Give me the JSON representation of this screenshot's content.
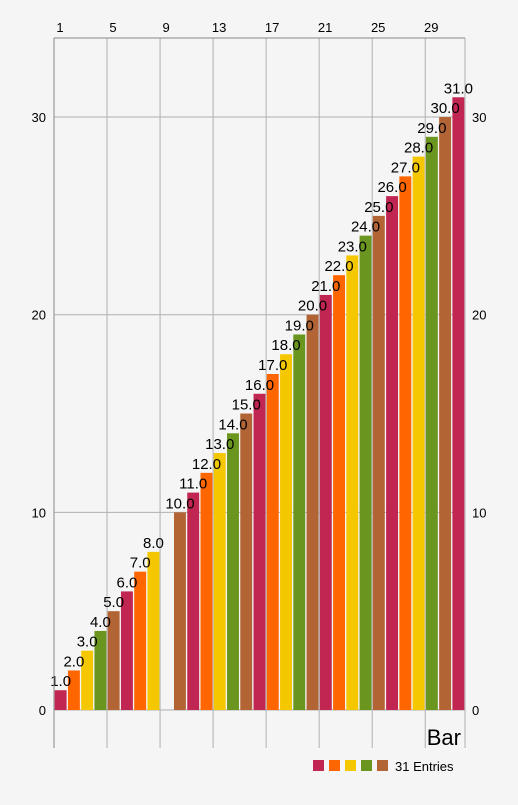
{
  "chart_data": {
    "type": "bar",
    "x": [
      1,
      2,
      3,
      4,
      5,
      6,
      7,
      8,
      9,
      10,
      11,
      12,
      13,
      14,
      15,
      16,
      17,
      18,
      19,
      20,
      21,
      22,
      23,
      24,
      25,
      26,
      27,
      28,
      29,
      30,
      31
    ],
    "series": [
      {
        "name": "31 Entries",
        "values": [
          1,
          2,
          3,
          4,
          5,
          6,
          7,
          8,
          null,
          10,
          11,
          12,
          13,
          14,
          15,
          16,
          17,
          18,
          19,
          20,
          21,
          22,
          23,
          24,
          25,
          26,
          27,
          28,
          29,
          30,
          31
        ],
        "value_labels": [
          "1.0",
          "2.0",
          "3.0",
          "4.0",
          "5.0",
          "6.0",
          "7.0",
          "8.0",
          "",
          "10.0",
          "11.0",
          "12.0",
          "13.0",
          "14.0",
          "15.0",
          "16.0",
          "17.0",
          "18.0",
          "19.0",
          "20.0",
          "21.0",
          "22.0",
          "23.0",
          "24.0",
          "25.0",
          "26.0",
          "27.0",
          "28.0",
          "29.0",
          "30.0",
          "31.0"
        ]
      }
    ],
    "colors": [
      "#C12552",
      "#FF6600",
      "#F5C700",
      "#6A961F",
      "#B36435"
    ],
    "x_ticks": [
      "1",
      "5",
      "9",
      "13",
      "17",
      "21",
      "25",
      "29"
    ],
    "x_tick_values": [
      1,
      5,
      9,
      13,
      17,
      21,
      25,
      29
    ],
    "y_ticks": [
      "0",
      "10",
      "20",
      "30"
    ],
    "y_tick_values": [
      0,
      10,
      20,
      30
    ],
    "xlim": [
      0.5,
      31.5
    ],
    "ylim": [
      0,
      34
    ],
    "x_axis_position": "top",
    "y_axes": [
      "left",
      "right"
    ],
    "grid": true,
    "description_text": "Bar",
    "legend": {
      "label": "31 Entries",
      "position": "bottom-right"
    }
  }
}
